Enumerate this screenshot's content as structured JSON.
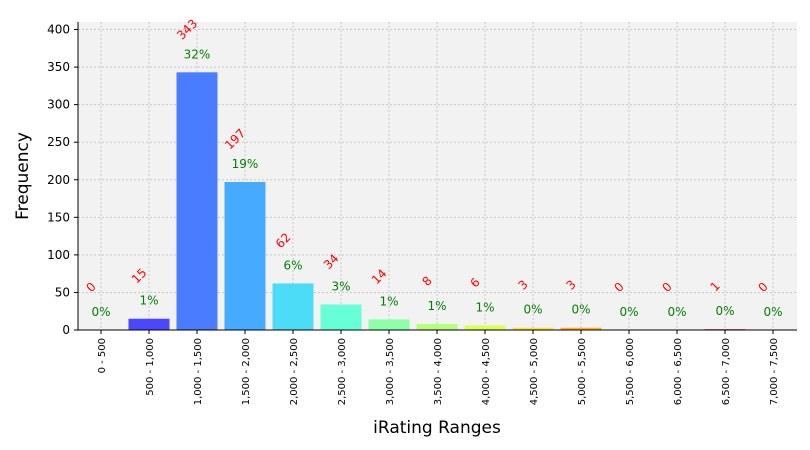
{
  "chart_data": {
    "type": "bar",
    "title": "",
    "xlabel": "iRating Ranges",
    "ylabel": "Frequency",
    "ylim": [
      0,
      410
    ],
    "yticks": [
      0,
      50,
      100,
      150,
      200,
      250,
      300,
      350,
      400
    ],
    "grid": true,
    "categories": [
      "0 - 500",
      "500 - 1,000",
      "1,000 - 1,500",
      "1,500 - 2,000",
      "2,000 - 2,500",
      "2,500 - 3,000",
      "3,000 - 3,500",
      "3,500 - 4,000",
      "4,000 - 4,500",
      "4,500 - 5,000",
      "5,000 - 5,500",
      "5,500 - 6,000",
      "6,000 - 6,500",
      "6,500 - 7,000",
      "7,000 - 7,500"
    ],
    "values": [
      0,
      15,
      343,
      197,
      62,
      34,
      14,
      8,
      6,
      3,
      3,
      0,
      0,
      1,
      0
    ],
    "percent_labels": [
      "0%",
      "1%",
      "32%",
      "19%",
      "6%",
      "3%",
      "1%",
      "1%",
      "1%",
      "0%",
      "0%",
      "0%",
      "0%",
      "0%",
      "0%"
    ],
    "bar_colors": [
      "#3b00ff",
      "#4b47ff",
      "#4a7cff",
      "#46aaff",
      "#4cdcf8",
      "#66ffd8",
      "#8cffa8",
      "#b6ff7e",
      "#dcff55",
      "#ffe23a",
      "#ffb020",
      "#ff7b10",
      "#ff4408",
      "#d81010",
      "#aa0000"
    ],
    "count_label_color": "#ff0000",
    "percent_label_color": "#008000"
  }
}
